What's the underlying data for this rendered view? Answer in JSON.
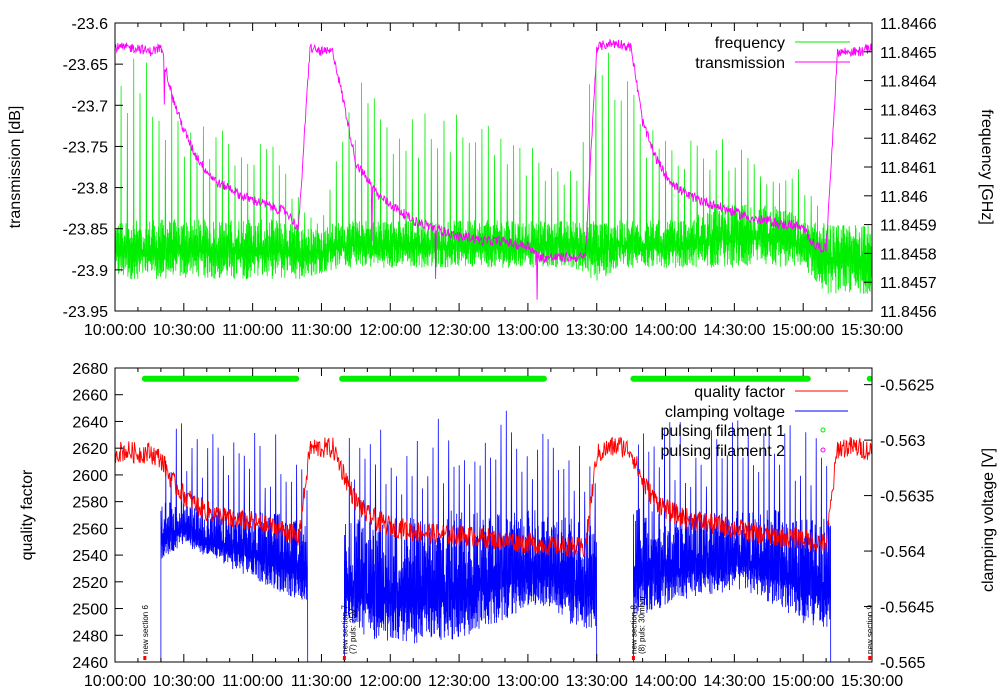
{
  "chart_data": [
    {
      "type": "line",
      "panel": "top",
      "ylabel": "transmission [dB]",
      "y2label": "frequency [GHz]",
      "ylim": [
        -23.95,
        -23.6
      ],
      "y2lim": [
        11.8456,
        11.8466
      ],
      "xlim_min": [
        0,
        330
      ],
      "x_ticks": [
        "10:00:00",
        "10:30:00",
        "11:00:00",
        "11:30:00",
        "12:00:00",
        "12:30:00",
        "13:00:00",
        "13:30:00",
        "14:00:00",
        "14:30:00",
        "15:00:00",
        "15:30:00"
      ],
      "y_ticks": [
        "-23.95",
        "-23.9",
        "-23.85",
        "-23.8",
        "-23.75",
        "-23.7",
        "-23.65",
        "-23.6"
      ],
      "y2_ticks": [
        "11.8456",
        "11.8457",
        "11.8458",
        "11.8459",
        "11.846",
        "11.8461",
        "11.8462",
        "11.8463",
        "11.8464",
        "11.8465",
        "11.8466"
      ],
      "legend": {
        "position": "top-right",
        "entries": [
          "frequency",
          "transmission"
        ]
      },
      "series": [
        {
          "name": "transmission",
          "axis": "left",
          "color": "#ff00ff",
          "t_step_min": 5,
          "values": [
            -23.63,
            -23.63,
            -23.63,
            -23.635,
            -23.63,
            -23.69,
            -23.73,
            -23.76,
            -23.78,
            -23.795,
            -23.8,
            -23.81,
            -23.815,
            -23.82,
            -23.825,
            -23.83,
            -23.85,
            -23.63,
            -23.635,
            -23.635,
            -23.7,
            -23.77,
            -23.79,
            -23.81,
            -23.82,
            -23.83,
            -23.84,
            -23.845,
            -23.85,
            -23.855,
            -23.86,
            -23.86,
            -23.865,
            -23.865,
            -23.865,
            -23.87,
            -23.87,
            -23.885,
            -23.885,
            -23.885,
            -23.885,
            -23.885,
            -23.63,
            -23.625,
            -23.625,
            -23.63,
            -23.72,
            -23.76,
            -23.785,
            -23.8,
            -23.81,
            -23.815,
            -23.82,
            -23.825,
            -23.83,
            -23.835,
            -23.84,
            -23.84,
            -23.845,
            -23.845,
            -23.85,
            -23.87,
            -23.875,
            -23.635,
            -23.635,
            -23.635,
            -23.63
          ]
        },
        {
          "name": "frequency",
          "axis": "right",
          "color": "#00ee00",
          "t_step_min": 10,
          "low": [
            11.84571,
            11.84571,
            11.84571,
            11.84571,
            11.84571,
            11.84571,
            11.84571,
            11.84571,
            11.84571,
            11.84573,
            11.84575,
            11.84575,
            11.84575,
            11.84575,
            11.84575,
            11.84575,
            11.84575,
            11.84575,
            11.84575,
            11.84575,
            11.84575,
            11.8457,
            11.84575,
            11.84575,
            11.84575,
            11.84575,
            11.84575,
            11.84575,
            11.84575,
            11.84575,
            11.84575,
            11.84566,
            11.84566,
            11.84566
          ],
          "band_high": [
            11.8459,
            11.8459,
            11.8459,
            11.8459,
            11.8459,
            11.8459,
            11.8459,
            11.8459,
            11.84588,
            11.84588,
            11.8459,
            11.8459,
            11.8459,
            11.8459,
            11.8459,
            11.8459,
            11.8459,
            11.8459,
            11.8459,
            11.8459,
            11.8459,
            11.8459,
            11.8459,
            11.8459,
            11.8459,
            11.8459,
            11.84595,
            11.84595,
            11.84595,
            11.84595,
            11.8459,
            11.84588,
            11.84588,
            11.84588
          ],
          "spike_high": [
            11.8466,
            11.8465,
            11.8464,
            11.8463,
            11.8463,
            11.8462,
            11.8462,
            11.8462,
            11.846,
            11.8459,
            11.8464,
            11.8464,
            11.8463,
            11.8463,
            11.8463,
            11.8463,
            11.8463,
            11.8462,
            11.8462,
            11.8461,
            11.8461,
            11.8466,
            11.8465,
            11.8463,
            11.8462,
            11.8462,
            11.8462,
            11.8462,
            11.8461,
            11.8461,
            11.8461,
            11.8459,
            11.8459,
            11.8459
          ]
        }
      ]
    },
    {
      "type": "line",
      "panel": "bottom",
      "ylabel": "quality factor",
      "y2label": "clamping voltage [V]",
      "ylim": [
        2460,
        2680
      ],
      "y2lim": [
        -0.565,
        -0.56235
      ],
      "xlim_min": [
        0,
        330
      ],
      "x_ticks": [
        "10:00:00",
        "10:30:00",
        "11:00:00",
        "11:30:00",
        "12:00:00",
        "12:30:00",
        "13:00:00",
        "13:30:00",
        "14:00:00",
        "14:30:00",
        "15:00:00",
        "15:30:00"
      ],
      "y_ticks": [
        "2460",
        "2480",
        "2500",
        "2520",
        "2540",
        "2560",
        "2580",
        "2600",
        "2620",
        "2640",
        "2660",
        "2680"
      ],
      "y2_ticks": [
        "-0.565",
        "-0.5645",
        "-0.564",
        "-0.5635",
        "-0.563",
        "-0.5625"
      ],
      "legend": {
        "position": "top-right",
        "entries": [
          "quality factor",
          "clamping voltage",
          "pulsing filament 1",
          "pulsing filament 2"
        ]
      },
      "series": [
        {
          "name": "quality factor",
          "axis": "left",
          "color": "#ff0000",
          "t_step_min": 5,
          "values": [
            2617,
            2618,
            2616,
            2617,
            2612,
            2595,
            2585,
            2578,
            2573,
            2570,
            2567,
            2566,
            2565,
            2562,
            2560,
            2558,
            2552,
            2620,
            2620,
            2620,
            2600,
            2580,
            2570,
            2565,
            2562,
            2560,
            2558,
            2557,
            2556,
            2555,
            2555,
            2554,
            2553,
            2552,
            2551,
            2550,
            2549,
            2548,
            2547,
            2547,
            2546,
            2545,
            2615,
            2620,
            2622,
            2618,
            2595,
            2582,
            2575,
            2570,
            2567,
            2565,
            2563,
            2562,
            2560,
            2558,
            2556,
            2555,
            2554,
            2553,
            2552,
            2550,
            2548,
            2620,
            2621,
            2620,
            2618
          ]
        },
        {
          "name": "clamping voltage",
          "axis": "right",
          "color": "#0000ff",
          "t_step_min": 10,
          "segments_min": [
            [
              20,
              84
            ],
            [
              100,
              210
            ],
            [
              226,
              312
            ]
          ],
          "low": [
            null,
            null,
            -0.56408,
            -0.56394,
            -0.56405,
            -0.56415,
            -0.56425,
            -0.56435,
            -0.56444,
            null,
            -0.56462,
            -0.5648,
            -0.56483,
            -0.56485,
            -0.56483,
            -0.5648,
            -0.5647,
            -0.56462,
            -0.5645,
            -0.5645,
            -0.5647,
            null,
            null,
            -0.56458,
            -0.5645,
            -0.56444,
            -0.5644,
            -0.56435,
            -0.5644,
            -0.56452,
            -0.56467,
            -0.5647,
            null,
            null
          ],
          "band_high": [
            null,
            null,
            -0.5636,
            -0.5636,
            -0.5637,
            -0.5637,
            -0.5637,
            -0.5637,
            -0.5638,
            null,
            -0.5638,
            -0.5638,
            -0.5638,
            -0.5638,
            -0.5638,
            -0.5637,
            -0.5637,
            -0.5637,
            -0.5637,
            -0.5637,
            -0.5638,
            null,
            null,
            -0.5637,
            -0.5637,
            -0.5637,
            -0.5637,
            -0.5637,
            -0.5637,
            -0.5637,
            -0.5638,
            -0.5638,
            null,
            null
          ],
          "spike_high": [
            null,
            null,
            -0.5627,
            -0.5628,
            -0.5629,
            -0.5629,
            -0.5629,
            -0.5628,
            -0.5629,
            null,
            -0.5628,
            -0.5627,
            -0.5628,
            -0.5628,
            -0.5628,
            -0.5628,
            -0.5628,
            -0.5627,
            -0.5628,
            -0.5629,
            -0.5629,
            null,
            null,
            -0.5628,
            -0.5627,
            -0.5628,
            -0.5628,
            -0.5628,
            -0.5628,
            -0.5628,
            -0.5629,
            -0.5629,
            null,
            null
          ]
        },
        {
          "name": "pulsing filament 1",
          "axis": "left",
          "color": "#00ee00",
          "value": 2672,
          "intervals_min": [
            [
              13,
              79
            ],
            [
              99,
              187
            ],
            [
              226,
              302
            ]
          ],
          "points_min": [
            329
          ]
        },
        {
          "name": "pulsing filament 2",
          "axis": "left",
          "color": "#ff00ff"
        }
      ],
      "annotations": [
        {
          "t_min": 13,
          "lines": [
            "new section 6"
          ]
        },
        {
          "t_min": 100,
          "lines": [
            "new section 7",
            "(7) puls: 25V"
          ]
        },
        {
          "t_min": 226,
          "lines": [
            "new section 8",
            "(8) puls: 30mbar"
          ]
        },
        {
          "t_min": 329,
          "lines": [
            "new section 9"
          ]
        }
      ]
    }
  ]
}
